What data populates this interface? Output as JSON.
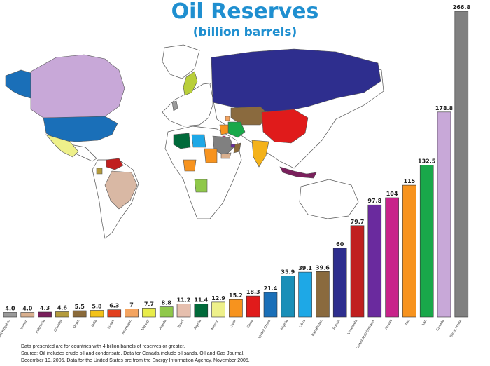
{
  "header": {
    "title": "Oil Reserves",
    "subtitle": "(billion barrels)"
  },
  "notes": [
    "Data presented are for countries with 4 billion barrels of reserves or greater.",
    "Source: Oil includes crude oil and condensate. Data for Canada include oil sands. Oil and Gas Journal,",
    "December 19, 2005. Data for the United States are from the Energy Information Agency, November 2005."
  ],
  "chart_data": {
    "type": "bar",
    "title": "Oil Reserves",
    "subtitle": "(billion barrels)",
    "categories": [
      "United Kingdom",
      "Yemen",
      "Indonesia",
      "Ecuador",
      "Oman",
      "India",
      "Sudan",
      "Azerbaijan",
      "Norway",
      "Angola",
      "Brazil",
      "Algeria",
      "Mexico",
      "Qatar",
      "China",
      "United States",
      "Nigeria",
      "Libya",
      "Kazakhstan",
      "Russia",
      "Venezuela",
      "United Arab Emirates",
      "Kuwait",
      "Iraq",
      "Iran",
      "Canada",
      "Saudi Arabia"
    ],
    "values": [
      4.0,
      4.0,
      4.3,
      4.6,
      5.5,
      5.8,
      6.3,
      7,
      7.7,
      8.8,
      11.2,
      11.4,
      12.9,
      15.2,
      18.3,
      21.4,
      35.9,
      39.1,
      39.6,
      60,
      79.7,
      97.8,
      104,
      115,
      132.5,
      178.8,
      266.8
    ],
    "value_labels": [
      "4.0",
      "4.0",
      "4.3",
      "4.6",
      "5.5",
      "5.8",
      "6.3",
      "7",
      "7.7",
      "8.8",
      "11.2",
      "11.4",
      "12.9",
      "15.2",
      "18.3",
      "21.4",
      "35.9",
      "39.1",
      "39.6",
      "60",
      "79.7",
      "97.8",
      "104",
      "115",
      "132.5",
      "178.8",
      "266.8"
    ],
    "colors": [
      "#9a9a9a",
      "#d9b08f",
      "#7a1f5c",
      "#b49b3c",
      "#8a6a3a",
      "#f2c21a",
      "#e2401f",
      "#f4a460",
      "#e8ec4a",
      "#8fc84a",
      "#e6bfae",
      "#006a3a",
      "#eef08a",
      "#f7931e",
      "#e01b1b",
      "#1a6fb8",
      "#1a8fb8",
      "#1ea8e6",
      "#8a6a3e",
      "#2e2e8e",
      "#c01f1f",
      "#6a2a9e",
      "#c8238a",
      "#f7931e",
      "#19a84a",
      "#c8a8d8",
      "#808080"
    ],
    "ylim": [
      0,
      266.8
    ],
    "grid": false,
    "legend": "none"
  },
  "map": {
    "colors": {
      "ocean": "#ffffff",
      "land": "#ffffff",
      "outline": "#555555",
      "russia": "#2e2e8e",
      "canada": "#c8a8d8",
      "alaska": "#1a6fb8",
      "usa": "#1a6fb8",
      "mexico": "#eef08a",
      "venezuela": "#c01f1f",
      "brazil": "#d9b8a4",
      "ecuador": "#b49b3c",
      "china": "#e01b1b",
      "kazakhstan": "#8a6a3e",
      "saudi": "#808080",
      "iran": "#19a84a",
      "iraq": "#f7931e",
      "kuwait": "#c8238a",
      "uae": "#6a2a9e",
      "libya": "#1ea8e6",
      "algeria": "#006a3a",
      "nigeria": "#f7931e",
      "sudan": "#f7931e",
      "angola": "#8fc84a",
      "norway": "#b9cf3a",
      "india": "#f4b21a",
      "indonesia": "#7a1f5c",
      "oman": "#8a6a3a",
      "yemen": "#d9b08f",
      "azerbaijan": "#f4a460",
      "uk": "#9a9a9a"
    }
  }
}
